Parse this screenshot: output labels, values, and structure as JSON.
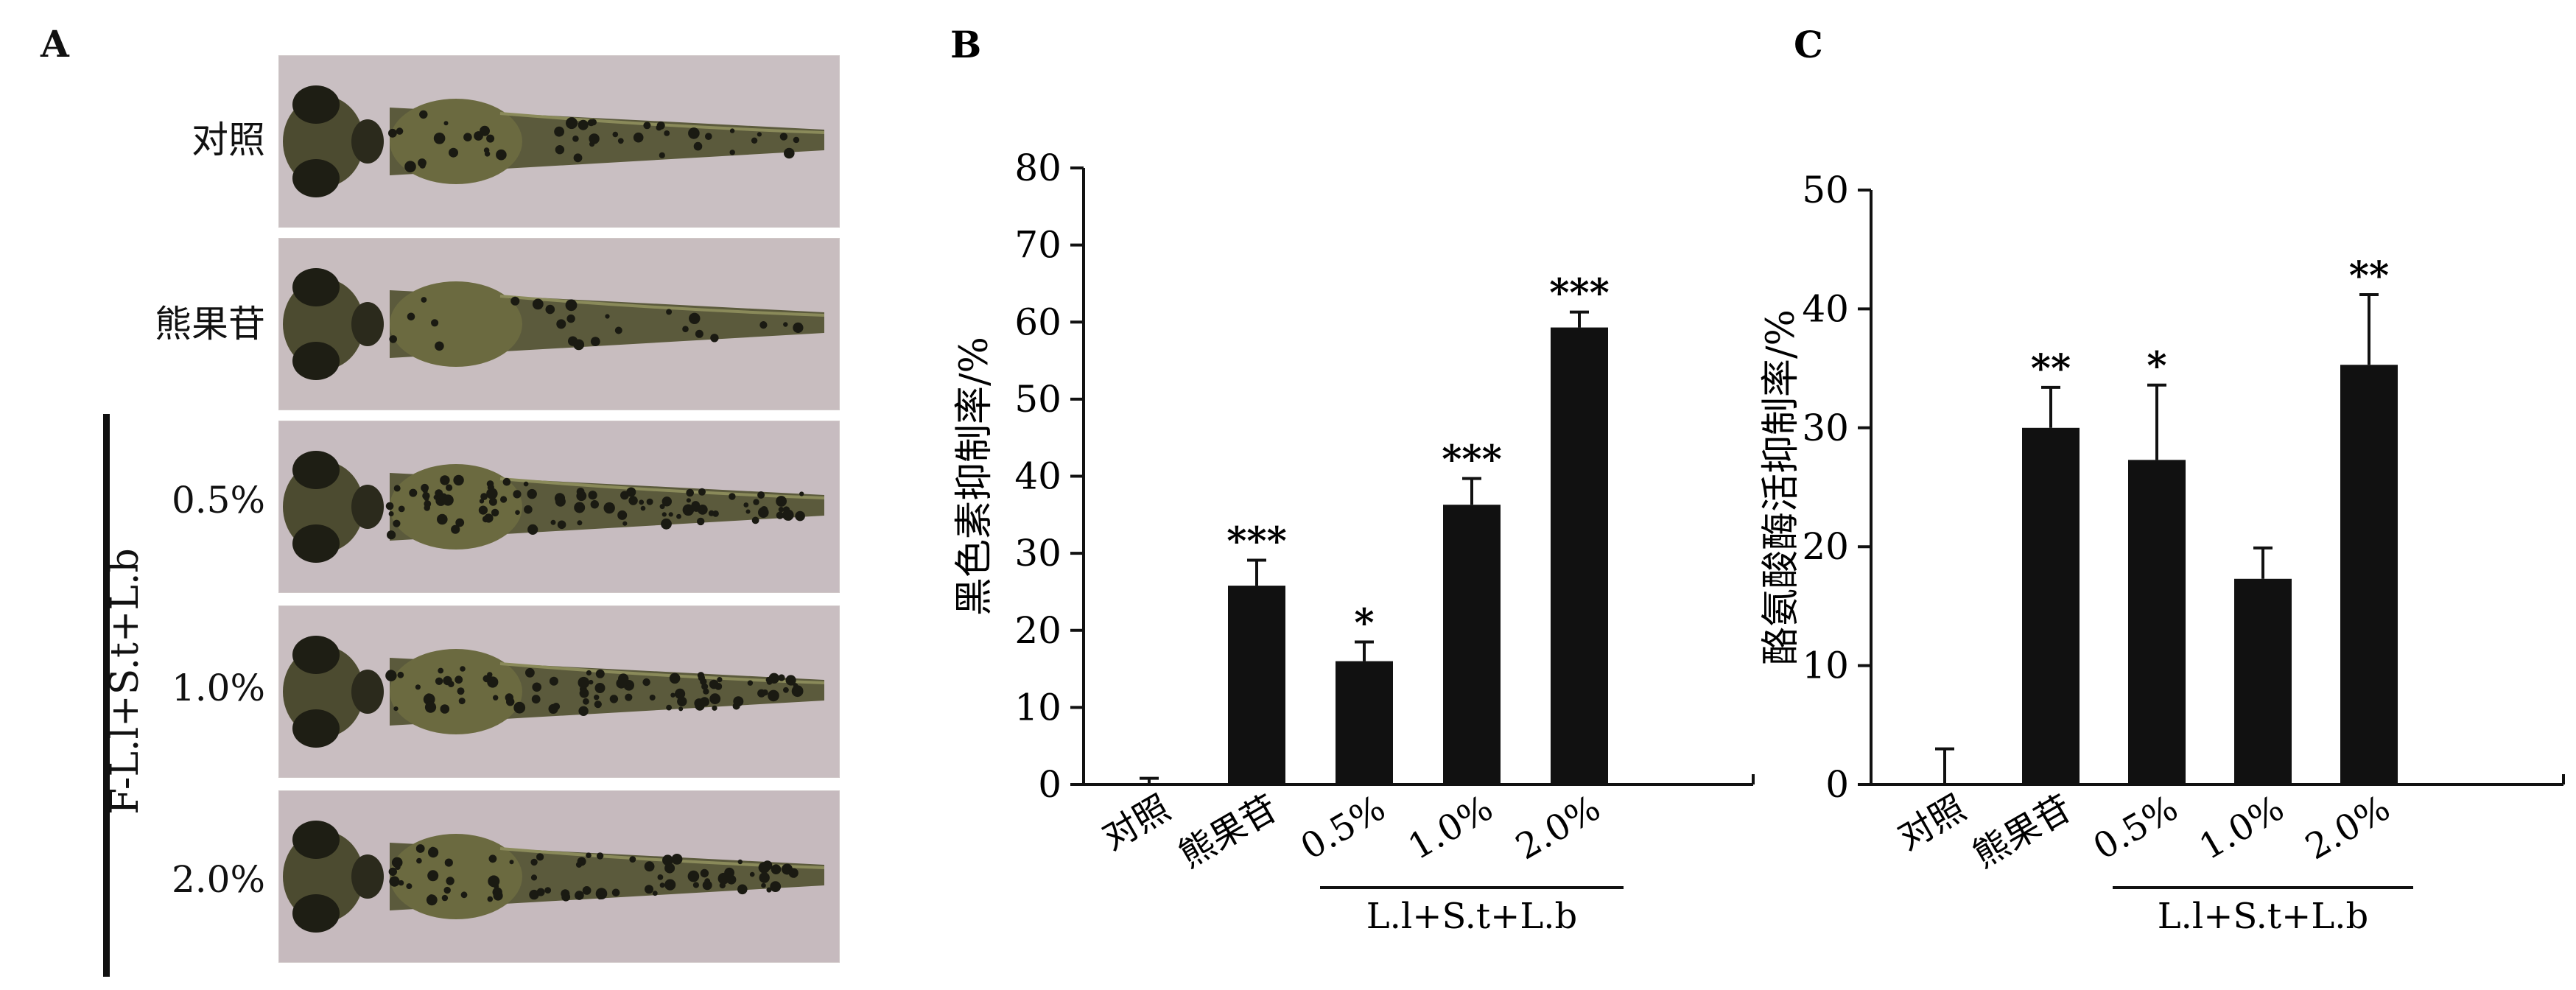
{
  "panels": {
    "A": {
      "letter": "A",
      "rows": [
        "对照",
        "熊果苷",
        "0.5%",
        "1.0%",
        "2.0%"
      ],
      "group_label": "F-L.l+S.t+L.b"
    }
  },
  "chart_data": [
    {
      "letter": "B",
      "type": "bar",
      "ylabel": "黑色素抑制率/%",
      "ylim": [
        0,
        80
      ],
      "yticks": [
        0,
        10,
        20,
        30,
        40,
        50,
        60,
        70,
        80
      ],
      "categories": [
        "对照",
        "熊果苷",
        "0.5%",
        "1.0%",
        "2.0%"
      ],
      "values": [
        0,
        25.8,
        16,
        36.3,
        59.3
      ],
      "errors": [
        0.8,
        3.3,
        2.5,
        3.4,
        2.0
      ],
      "significance": [
        "",
        "***",
        "*",
        "***",
        "***"
      ],
      "group_label": "L.l+S.t+L.b",
      "bar_color": "#111111"
    },
    {
      "letter": "C",
      "type": "bar",
      "ylabel": "酪氨酸酶活抑制率/%",
      "ylim": [
        0,
        50
      ],
      "yticks": [
        0,
        10,
        20,
        30,
        40,
        50
      ],
      "categories": [
        "对照",
        "熊果苷",
        "0.5%",
        "1.0%",
        "2.0%"
      ],
      "values": [
        0,
        30,
        27.3,
        17.3,
        35.3
      ],
      "errors": [
        3.0,
        3.4,
        6.3,
        2.6,
        5.9
      ],
      "significance": [
        "",
        "**",
        "*",
        "",
        "**"
      ],
      "group_label": "L.l+S.t+L.b",
      "bar_color": "#111111"
    }
  ]
}
